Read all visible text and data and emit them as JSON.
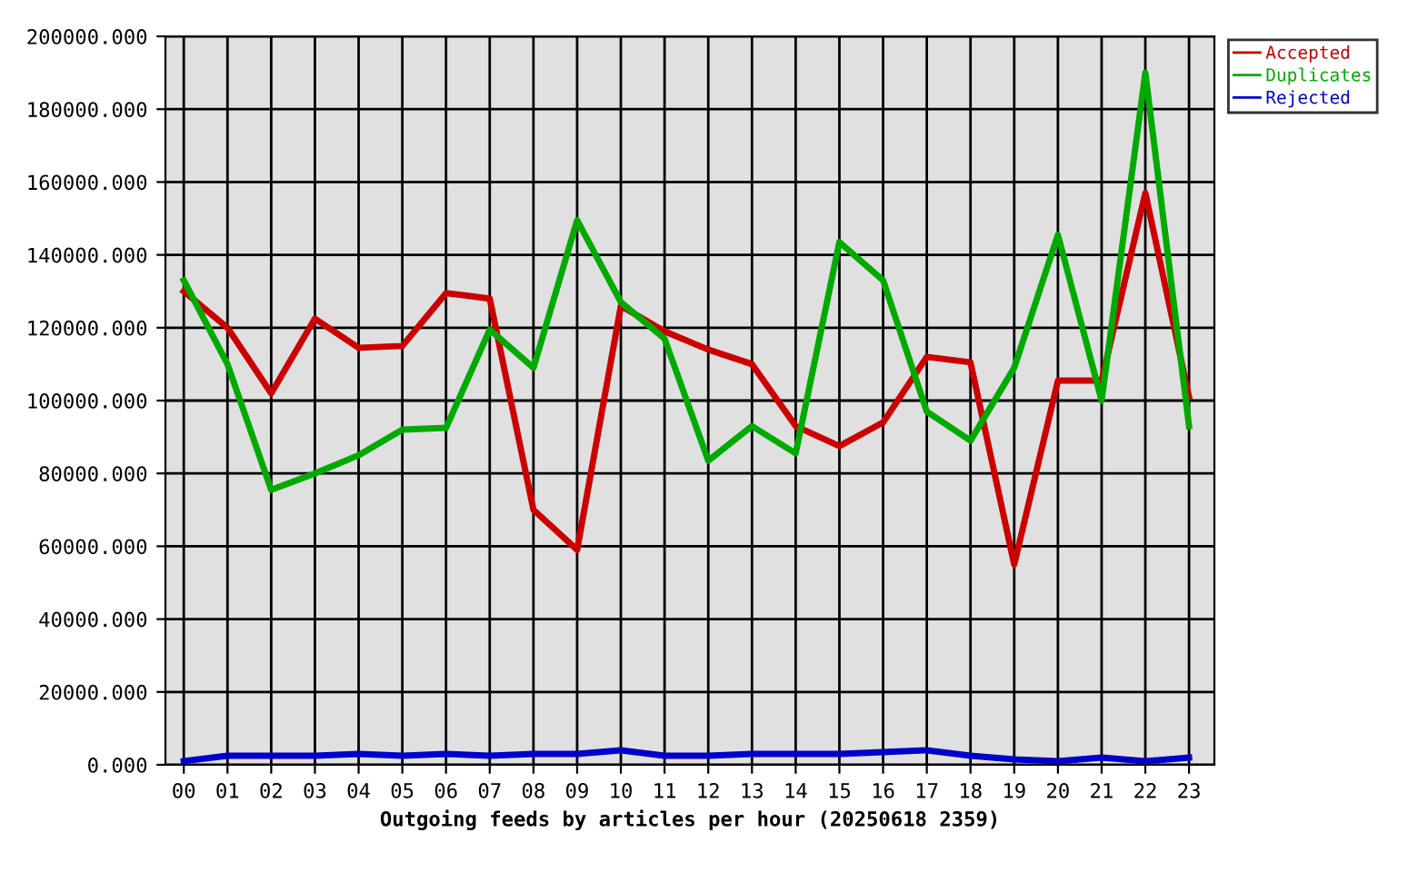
{
  "chart_data": {
    "type": "line",
    "xlabel": "Outgoing feeds by articles per hour (20250618 2359)",
    "categories": [
      "00",
      "01",
      "02",
      "03",
      "04",
      "05",
      "06",
      "07",
      "08",
      "09",
      "10",
      "11",
      "12",
      "13",
      "14",
      "15",
      "16",
      "17",
      "18",
      "19",
      "20",
      "21",
      "22",
      "23"
    ],
    "series": [
      {
        "name": "Accepted",
        "color": "#cc0000",
        "values": [
          130000,
          120000,
          102000,
          122500,
          114500,
          115000,
          129500,
          128000,
          70000,
          59000,
          126000,
          119000,
          114000,
          110000,
          93000,
          87500,
          94000,
          112000,
          110500,
          55000,
          105500,
          105500,
          157000,
          101000
        ]
      },
      {
        "name": "Duplicates",
        "color": "#00aa00",
        "values": [
          133000,
          110000,
          75500,
          80000,
          85000,
          92000,
          92500,
          119500,
          109000,
          149500,
          127000,
          117000,
          83500,
          93000,
          85500,
          143500,
          133000,
          97000,
          89000,
          109000,
          145500,
          100000,
          190000,
          93000
        ]
      },
      {
        "name": "Rejected",
        "color": "#0000cc",
        "values": [
          1000,
          2500,
          2500,
          2500,
          3000,
          2500,
          3000,
          2500,
          3000,
          3000,
          4000,
          2500,
          2500,
          3000,
          3000,
          3000,
          3500,
          4000,
          2500,
          1500,
          1000,
          2000,
          1000,
          2000
        ]
      }
    ],
    "ylim": [
      0,
      200000
    ],
    "yticks": [
      {
        "value": 0,
        "label": "0.000"
      },
      {
        "value": 20000,
        "label": "20000.000"
      },
      {
        "value": 40000,
        "label": "40000.000"
      },
      {
        "value": 60000,
        "label": "60000.000"
      },
      {
        "value": 80000,
        "label": "80000.000"
      },
      {
        "value": 100000,
        "label": "100000.000"
      },
      {
        "value": 120000,
        "label": "120000.000"
      },
      {
        "value": 140000,
        "label": "140000.000"
      },
      {
        "value": 160000,
        "label": "160000.000"
      },
      {
        "value": 180000,
        "label": "180000.000"
      },
      {
        "value": 200000,
        "label": "200000.000"
      }
    ],
    "grid": true,
    "legend": "top right"
  }
}
